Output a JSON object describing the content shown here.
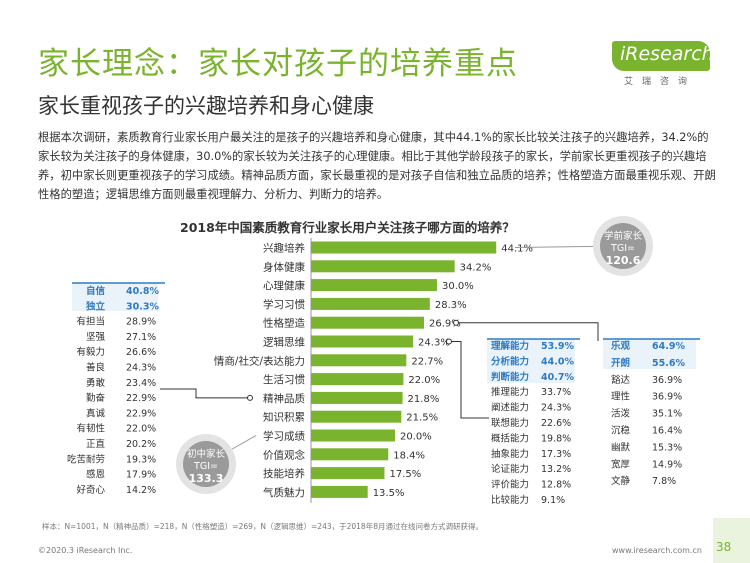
{
  "header": {
    "title": "家长理念：家长对孩子的培养重点",
    "subtitle": "家长重视孩子的兴趣培养和身心健康",
    "logo_text": "iResearch",
    "logo_sub": "艾瑞咨询"
  },
  "paragraph": "根据本次调研，素质教育行业家长用户最关注的是孩子的兴趣培养和身心健康，其中44.1%的家长比较关注孩子的兴趣培养，34.2%的家长较为关注孩子的身体健康，30.0%的家长较为关注孩子的心理健康。相比于其他学龄段孩子的家长，学前家长更重视孩子的兴趣培养，初中家长则更重视孩子的学习成绩。精神品质方面，家长最重视的是对孩子自信和独立品质的培养；性格塑造方面最重视乐观、开朗性格的塑造；逻辑思维方面则最重视理解力、分析力、判断力的培养。",
  "chart_data": {
    "type": "bar",
    "title": "2018年中国素质教育行业家长用户关注孩子哪方面的培养？",
    "categories": [
      "兴趣培养",
      "身体健康",
      "心理健康",
      "学习习惯",
      "性格塑造",
      "逻辑思维",
      "情商/社交/表达能力",
      "生活习惯",
      "精神品质",
      "知识积累",
      "学习成绩",
      "价值观念",
      "技能培养",
      "气质魅力"
    ],
    "values": [
      44.1,
      34.2,
      30.0,
      28.3,
      26.9,
      24.3,
      22.7,
      22.0,
      21.8,
      21.5,
      20.0,
      18.4,
      17.5,
      13.5
    ],
    "value_labels": [
      "44.1%",
      "34.2%",
      "30.0%",
      "28.3%",
      "26.9%",
      "24.3%",
      "22.7%",
      "22.0%",
      "21.8%",
      "21.5%",
      "20.0%",
      "18.4%",
      "17.5%",
      "13.5%"
    ],
    "bar_color": "#7ab32e",
    "accent_color": "#2e7bc4",
    "tgi_badges": [
      {
        "label": "学前家长",
        "tgi_prefix": "TGI=",
        "value": "120.6",
        "target": "兴趣培养"
      },
      {
        "label": "初中家长",
        "tgi_prefix": "TGI=",
        "value": "133.3",
        "target": "学习成绩"
      }
    ],
    "sub_tables": {
      "jingshen": {
        "target": "精神品质",
        "rows": [
          {
            "name": "自信",
            "value": "40.8%",
            "highlight": true
          },
          {
            "name": "独立",
            "value": "30.3%",
            "highlight": true
          },
          {
            "name": "有担当",
            "value": "28.9%"
          },
          {
            "name": "坚强",
            "value": "27.1%"
          },
          {
            "name": "有毅力",
            "value": "26.6%"
          },
          {
            "name": "善良",
            "value": "24.3%"
          },
          {
            "name": "勇敢",
            "value": "23.4%"
          },
          {
            "name": "勤奋",
            "value": "22.9%"
          },
          {
            "name": "真诚",
            "value": "22.9%"
          },
          {
            "name": "有韧性",
            "value": "22.0%"
          },
          {
            "name": "正直",
            "value": "20.2%"
          },
          {
            "name": "吃苦耐劳",
            "value": "19.3%"
          },
          {
            "name": "感恩",
            "value": "17.9%"
          },
          {
            "name": "好奇心",
            "value": "14.2%"
          }
        ]
      },
      "luoji": {
        "target": "逻辑思维",
        "rows": [
          {
            "name": "理解能力",
            "value": "53.9%",
            "highlight": true
          },
          {
            "name": "分析能力",
            "value": "44.0%",
            "highlight": true
          },
          {
            "name": "判断能力",
            "value": "40.7%",
            "highlight": true
          },
          {
            "name": "推理能力",
            "value": "33.7%"
          },
          {
            "name": "阐述能力",
            "value": "24.3%"
          },
          {
            "name": "联想能力",
            "value": "22.6%"
          },
          {
            "name": "概括能力",
            "value": "19.8%"
          },
          {
            "name": "抽象能力",
            "value": "17.3%"
          },
          {
            "name": "论证能力",
            "value": "13.2%"
          },
          {
            "name": "评价能力",
            "value": "12.8%"
          },
          {
            "name": "比较能力",
            "value": "9.1%"
          }
        ]
      },
      "xingge": {
        "target": "性格塑造",
        "rows": [
          {
            "name": "乐观",
            "value": "64.9%",
            "highlight": true
          },
          {
            "name": "开朗",
            "value": "55.6%",
            "highlight": true
          },
          {
            "name": "豁达",
            "value": "36.9%"
          },
          {
            "name": "理性",
            "value": "36.9%"
          },
          {
            "name": "活泼",
            "value": "35.1%"
          },
          {
            "name": "沉稳",
            "value": "16.4%"
          },
          {
            "name": "幽默",
            "value": "15.3%"
          },
          {
            "name": "宽厚",
            "value": "14.9%"
          },
          {
            "name": "文静",
            "value": "7.8%"
          }
        ]
      }
    }
  },
  "footer": {
    "note": "样本：N=1001，N（精神品质）=218，N（性格塑造）=269，N（逻辑思维）=243，于2018年8月通过在线问卷方式调研获得。",
    "copyright": "©2020.3 iResearch Inc.",
    "website": "www.iresearch.com.cn",
    "page": "38"
  }
}
